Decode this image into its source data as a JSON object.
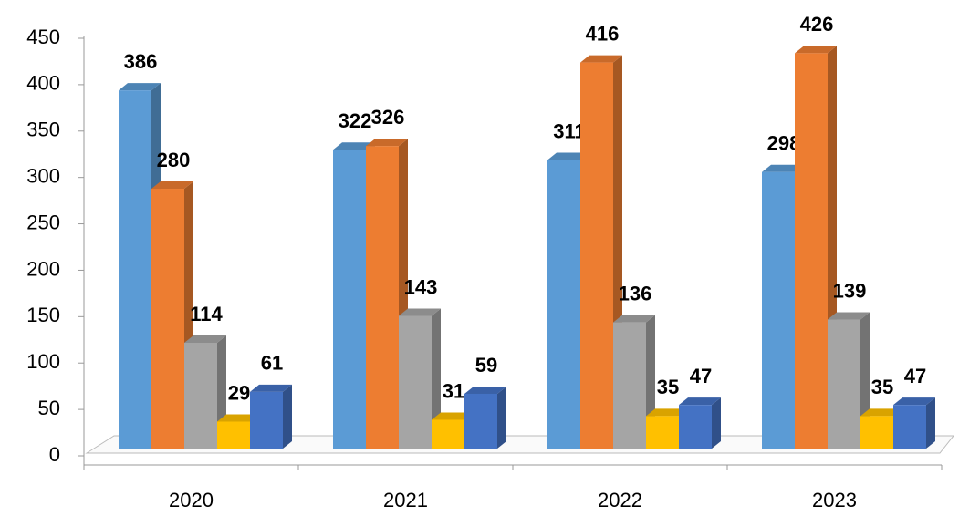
{
  "chart_data": {
    "type": "bar3d",
    "categories": [
      "2020",
      "2021",
      "2022",
      "2023"
    ],
    "series": [
      {
        "color": "#5b9bd5",
        "values": [
          386,
          322,
          311,
          298
        ]
      },
      {
        "color": "#ed7d31",
        "values": [
          280,
          326,
          416,
          426
        ]
      },
      {
        "color": "#a5a5a5",
        "values": [
          114,
          143,
          136,
          139
        ]
      },
      {
        "color": "#ffc000",
        "values": [
          29,
          31,
          35,
          35
        ]
      },
      {
        "color": "#4472c4",
        "values": [
          61,
          59,
          47,
          47
        ]
      }
    ],
    "ylim": [
      0,
      450
    ],
    "yticks": [
      0,
      50,
      100,
      150,
      200,
      250,
      300,
      350,
      400,
      450
    ]
  }
}
